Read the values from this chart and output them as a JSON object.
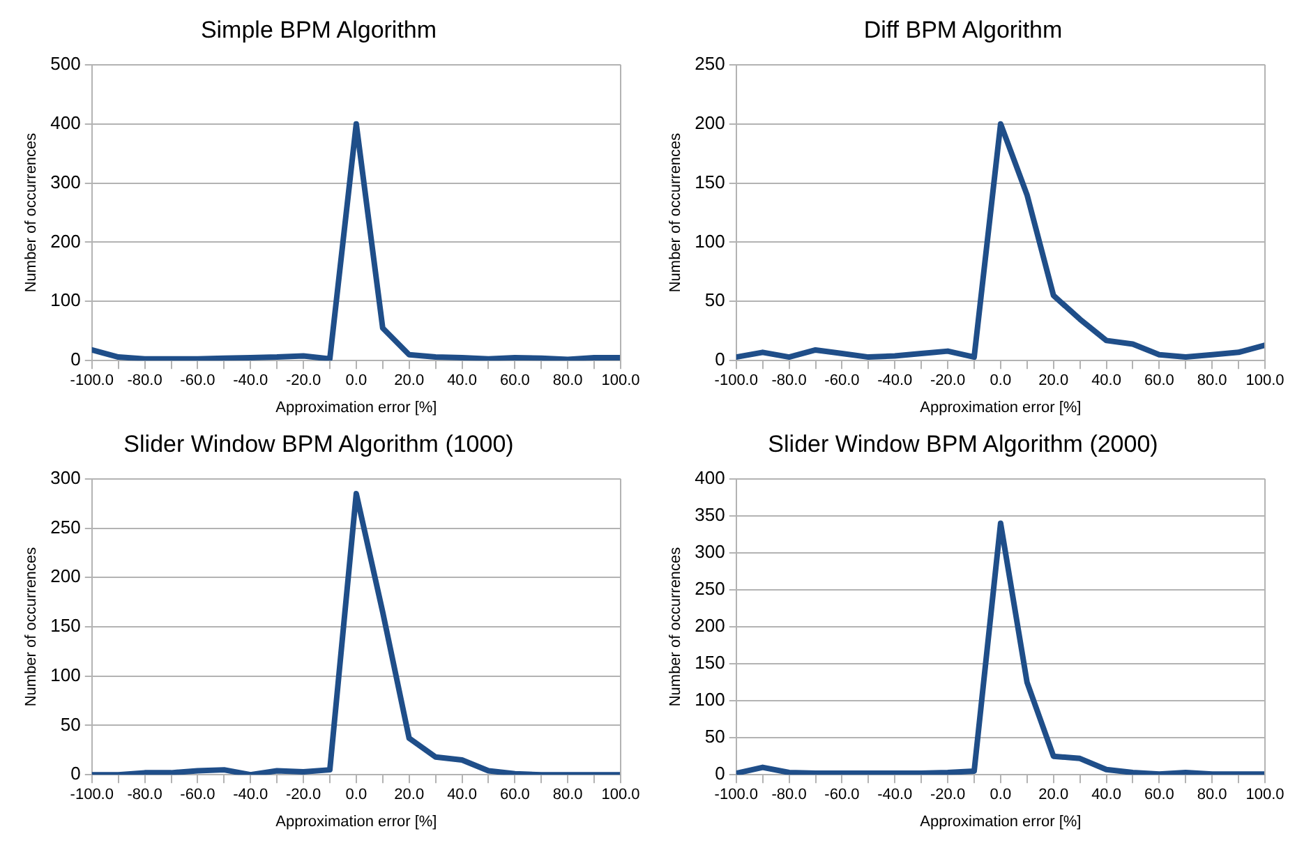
{
  "chart_data": [
    {
      "type": "line",
      "title": "Simple BPM Algorithm",
      "xlabel": "Approximation error [%]",
      "ylabel": "Number of occurrences",
      "x": [
        -100,
        -90,
        -80,
        -70,
        -60,
        -50,
        -40,
        -30,
        -20,
        -10,
        0,
        10,
        20,
        30,
        40,
        50,
        60,
        70,
        80,
        90,
        100
      ],
      "series": [
        {
          "color": "#1f4e89",
          "values": [
            18,
            6,
            3,
            3,
            3,
            4,
            5,
            6,
            8,
            3,
            400,
            55,
            10,
            6,
            5,
            3,
            5,
            4,
            2,
            5,
            5
          ]
        }
      ],
      "xlim": [
        -100,
        100
      ],
      "xticks": [
        {
          "value": -100,
          "label": "-100.0"
        },
        {
          "value": -90,
          "label": null
        },
        {
          "value": -80,
          "label": "-80.0"
        },
        {
          "value": -70,
          "label": null
        },
        {
          "value": -60,
          "label": "-60.0"
        },
        {
          "value": -50,
          "label": null
        },
        {
          "value": -40,
          "label": "-40.0"
        },
        {
          "value": -30,
          "label": null
        },
        {
          "value": -20,
          "label": "-20.0"
        },
        {
          "value": -10,
          "label": null
        },
        {
          "value": 0,
          "label": "0.0"
        },
        {
          "value": 10,
          "label": null
        },
        {
          "value": 20,
          "label": "20.0"
        },
        {
          "value": 30,
          "label": null
        },
        {
          "value": 40,
          "label": "40.0"
        },
        {
          "value": 50,
          "label": null
        },
        {
          "value": 60,
          "label": "60.0"
        },
        {
          "value": 70,
          "label": null
        },
        {
          "value": 80,
          "label": "80.0"
        },
        {
          "value": 90,
          "label": null
        },
        {
          "value": 100,
          "label": "100.0"
        }
      ],
      "ylim": [
        0,
        500
      ],
      "yticks": [
        0,
        100,
        200,
        300,
        400,
        500
      ],
      "grid": "y",
      "marker": "none",
      "line_style": "solid"
    },
    {
      "type": "line",
      "title": "Diff BPM Algorithm",
      "xlabel": "Approximation error [%]",
      "ylabel": "Number of occurrences",
      "x": [
        -100,
        -90,
        -80,
        -70,
        -60,
        -50,
        -40,
        -30,
        -20,
        -10,
        0,
        10,
        20,
        30,
        40,
        50,
        60,
        70,
        80,
        90,
        100
      ],
      "series": [
        {
          "color": "#1f4e89",
          "values": [
            3,
            7,
            3,
            9,
            6,
            3,
            4,
            6,
            8,
            3,
            200,
            140,
            55,
            35,
            17,
            14,
            5,
            3,
            5,
            7,
            13
          ]
        }
      ],
      "xlim": [
        -100,
        100
      ],
      "xticks": [
        {
          "value": -100,
          "label": "-100.0"
        },
        {
          "value": -90,
          "label": null
        },
        {
          "value": -80,
          "label": "-80.0"
        },
        {
          "value": -70,
          "label": null
        },
        {
          "value": -60,
          "label": "-60.0"
        },
        {
          "value": -50,
          "label": null
        },
        {
          "value": -40,
          "label": "-40.0"
        },
        {
          "value": -30,
          "label": null
        },
        {
          "value": -20,
          "label": "-20.0"
        },
        {
          "value": -10,
          "label": null
        },
        {
          "value": 0,
          "label": "0.0"
        },
        {
          "value": 10,
          "label": null
        },
        {
          "value": 20,
          "label": "20.0"
        },
        {
          "value": 30,
          "label": null
        },
        {
          "value": 40,
          "label": "40.0"
        },
        {
          "value": 50,
          "label": null
        },
        {
          "value": 60,
          "label": "60.0"
        },
        {
          "value": 70,
          "label": null
        },
        {
          "value": 80,
          "label": "80.0"
        },
        {
          "value": 90,
          "label": null
        },
        {
          "value": 100,
          "label": "100.0"
        }
      ],
      "ylim": [
        0,
        250
      ],
      "yticks": [
        0,
        50,
        100,
        150,
        200,
        250
      ],
      "grid": "y",
      "marker": "none",
      "line_style": "solid"
    },
    {
      "type": "line",
      "title": "Slider Window BPM Algorithm (1000)",
      "xlabel": "Approximation error [%]",
      "ylabel": "Number of occurrences",
      "x": [
        -100,
        -90,
        -80,
        -70,
        -60,
        -50,
        -40,
        -30,
        -20,
        -10,
        0,
        10,
        20,
        30,
        40,
        50,
        60,
        70,
        80,
        90,
        100
      ],
      "series": [
        {
          "color": "#1f4e89",
          "values": [
            0,
            0,
            2,
            2,
            4,
            5,
            0,
            4,
            3,
            5,
            285,
            165,
            37,
            18,
            15,
            4,
            1,
            0,
            0,
            0,
            0
          ]
        }
      ],
      "xlim": [
        -100,
        100
      ],
      "xticks": [
        {
          "value": -100,
          "label": "-100.0"
        },
        {
          "value": -90,
          "label": null
        },
        {
          "value": -80,
          "label": "-80.0"
        },
        {
          "value": -70,
          "label": null
        },
        {
          "value": -60,
          "label": "-60.0"
        },
        {
          "value": -50,
          "label": null
        },
        {
          "value": -40,
          "label": "-40.0"
        },
        {
          "value": -30,
          "label": null
        },
        {
          "value": -20,
          "label": "-20.0"
        },
        {
          "value": -10,
          "label": null
        },
        {
          "value": 0,
          "label": "0.0"
        },
        {
          "value": 10,
          "label": null
        },
        {
          "value": 20,
          "label": "20.0"
        },
        {
          "value": 30,
          "label": null
        },
        {
          "value": 40,
          "label": "40.0"
        },
        {
          "value": 50,
          "label": null
        },
        {
          "value": 60,
          "label": "60.0"
        },
        {
          "value": 70,
          "label": null
        },
        {
          "value": 80,
          "label": "80.0"
        },
        {
          "value": 90,
          "label": null
        },
        {
          "value": 100,
          "label": "100.0"
        }
      ],
      "ylim": [
        0,
        300
      ],
      "yticks": [
        0,
        50,
        100,
        150,
        200,
        250,
        300
      ],
      "grid": "y",
      "marker": "none",
      "line_style": "solid"
    },
    {
      "type": "line",
      "title": "Slider Window BPM Algorithm (2000)",
      "xlabel": "Approximation error [%]",
      "ylabel": "Number of occurrences",
      "x": [
        -100,
        -90,
        -80,
        -70,
        -60,
        -50,
        -40,
        -30,
        -20,
        -10,
        0,
        10,
        20,
        30,
        40,
        50,
        60,
        70,
        80,
        90,
        100
      ],
      "series": [
        {
          "color": "#1f4e89",
          "values": [
            2,
            10,
            3,
            2,
            2,
            2,
            2,
            2,
            3,
            5,
            340,
            125,
            25,
            22,
            7,
            3,
            1,
            3,
            1,
            1,
            1
          ]
        }
      ],
      "xlim": [
        -100,
        100
      ],
      "xticks": [
        {
          "value": -100,
          "label": "-100.0"
        },
        {
          "value": -90,
          "label": null
        },
        {
          "value": -80,
          "label": "-80.0"
        },
        {
          "value": -70,
          "label": null
        },
        {
          "value": -60,
          "label": "-60.0"
        },
        {
          "value": -50,
          "label": null
        },
        {
          "value": -40,
          "label": "-40.0"
        },
        {
          "value": -30,
          "label": null
        },
        {
          "value": -20,
          "label": "-20.0"
        },
        {
          "value": -10,
          "label": null
        },
        {
          "value": 0,
          "label": "0.0"
        },
        {
          "value": 10,
          "label": null
        },
        {
          "value": 20,
          "label": "20.0"
        },
        {
          "value": 30,
          "label": null
        },
        {
          "value": 40,
          "label": "40.0"
        },
        {
          "value": 50,
          "label": null
        },
        {
          "value": 60,
          "label": "60.0"
        },
        {
          "value": 70,
          "label": null
        },
        {
          "value": 80,
          "label": "80.0"
        },
        {
          "value": 90,
          "label": null
        },
        {
          "value": 100,
          "label": "100.0"
        }
      ],
      "ylim": [
        0,
        400
      ],
      "yticks": [
        0,
        50,
        100,
        150,
        200,
        250,
        300,
        350,
        400
      ],
      "grid": "y",
      "marker": "none",
      "line_style": "solid"
    }
  ]
}
